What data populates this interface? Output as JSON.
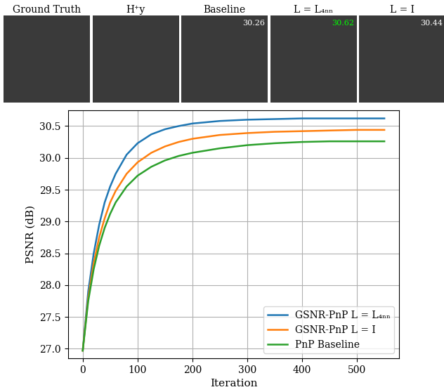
{
  "chart_data": {
    "type": "line",
    "x_label": "Iteration",
    "y_label": "PSNR (dB)",
    "x": [
      0,
      10,
      20,
      30,
      40,
      50,
      60,
      80,
      100,
      125,
      150,
      175,
      200,
      250,
      300,
      350,
      400,
      450,
      500,
      550
    ],
    "series": [
      {
        "name": "GSNR-PnP L = L₄ₙₙ",
        "color": "#1f77b4",
        "values": [
          26.97,
          27.9,
          28.5,
          28.95,
          29.3,
          29.55,
          29.75,
          30.05,
          30.23,
          30.37,
          30.45,
          30.5,
          30.54,
          30.58,
          30.6,
          30.61,
          30.62,
          30.62,
          30.62,
          30.62
        ]
      },
      {
        "name": "GSNR-PnP L = I",
        "color": "#ff7f0e",
        "values": [
          26.97,
          27.8,
          28.35,
          28.75,
          29.05,
          29.3,
          29.48,
          29.75,
          29.93,
          30.08,
          30.18,
          30.25,
          30.3,
          30.36,
          30.39,
          30.41,
          30.42,
          30.43,
          30.44,
          30.44
        ]
      },
      {
        "name": "PnP Baseline",
        "color": "#2ca02c",
        "values": [
          26.97,
          27.75,
          28.25,
          28.62,
          28.9,
          29.12,
          29.3,
          29.55,
          29.72,
          29.86,
          29.96,
          30.03,
          30.08,
          30.15,
          30.2,
          30.23,
          30.25,
          30.26,
          30.26,
          30.26
        ]
      }
    ],
    "xlim": [
      -27,
      577
    ],
    "ylim": [
      26.85,
      30.75
    ],
    "xticks": [
      0,
      100,
      200,
      300,
      400,
      500
    ],
    "yticks": [
      27.0,
      27.5,
      28.0,
      28.5,
      29.0,
      29.5,
      30.0,
      30.5
    ],
    "grid": true,
    "legend": "lower right"
  },
  "panels": [
    {
      "title": "Ground Truth",
      "psnr": null
    },
    {
      "title": "H⁺y",
      "psnr": null
    },
    {
      "title": "Baseline",
      "psnr": 30.26,
      "color": "#ffffff"
    },
    {
      "title": "L = L₄ₙₙ",
      "psnr": 30.62,
      "color": "#00ff00"
    },
    {
      "title": "L = I",
      "psnr": 30.44,
      "color": "#ffffff"
    }
  ]
}
